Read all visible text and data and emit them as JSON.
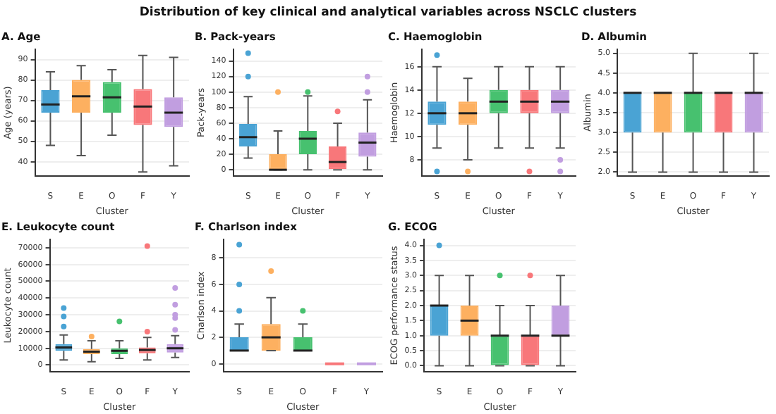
{
  "chart_data": [
    {
      "type": "other",
      "title": "Distribution of key clinical and analytical variables across NSCLC clusters"
    },
    {
      "type": "box",
      "title": "A. Age",
      "xlabel": "Cluster",
      "ylabel": "Age (years)",
      "categories": [
        "S",
        "E",
        "O",
        "F",
        "Y"
      ],
      "colors": [
        "#4aa3d4",
        "#fdb060",
        "#47c16f",
        "#f8777a",
        "#c19ee0"
      ],
      "grid": "y",
      "ylim": [
        33,
        95
      ],
      "yticks": [
        40,
        50,
        60,
        70,
        80,
        90
      ],
      "boxes": [
        {
          "low": 48,
          "q1": 64,
          "median": 68,
          "q3": 75,
          "high": 84
        },
        {
          "low": 43,
          "q1": 64,
          "median": 72,
          "q3": 80,
          "high": 87
        },
        {
          "low": 53,
          "q1": 64,
          "median": 71.5,
          "q3": 79,
          "high": 85
        },
        {
          "low": 35,
          "q1": 58,
          "median": 67,
          "q3": 75.5,
          "high": 92
        },
        {
          "low": 38,
          "q1": 57,
          "median": 64,
          "q3": 71.5,
          "high": 91
        }
      ]
    },
    {
      "type": "box",
      "title": "B. Pack-years",
      "xlabel": "Cluster",
      "ylabel": "Pack-years",
      "categories": [
        "S",
        "E",
        "O",
        "F",
        "Y"
      ],
      "colors": [
        "#4aa3d4",
        "#fdb060",
        "#47c16f",
        "#f8777a",
        "#c19ee0"
      ],
      "grid": "y",
      "ylim": [
        -8,
        155
      ],
      "yticks": [
        0,
        20,
        40,
        60,
        80,
        100,
        120,
        140
      ],
      "boxes": [
        {
          "low": 15,
          "q1": 30,
          "median": 42,
          "q3": 59,
          "high": 94,
          "outliers": [
            120,
            150
          ]
        },
        {
          "low": 0,
          "q1": 0,
          "median": 0,
          "q3": 20,
          "high": 50,
          "outliers": [
            100
          ]
        },
        {
          "low": 0,
          "q1": 20,
          "median": 40,
          "q3": 50,
          "high": 95,
          "outliers": [
            100
          ]
        },
        {
          "low": 0,
          "q1": 0,
          "median": 10,
          "q3": 30,
          "high": 60,
          "outliers": [
            75
          ]
        },
        {
          "low": 0,
          "q1": 17,
          "median": 35,
          "q3": 48,
          "high": 90,
          "outliers": [
            100,
            120
          ]
        }
      ]
    },
    {
      "type": "box",
      "title": "C. Haemoglobin",
      "xlabel": "Cluster",
      "ylabel": "Haemoglobin",
      "categories": [
        "S",
        "E",
        "O",
        "F",
        "Y"
      ],
      "colors": [
        "#4aa3d4",
        "#fdb060",
        "#47c16f",
        "#f8777a",
        "#c19ee0"
      ],
      "grid": "y",
      "ylim": [
        6.6,
        17.5
      ],
      "yticks": [
        8,
        10,
        12,
        14,
        16
      ],
      "boxes": [
        {
          "low": 9,
          "q1": 11,
          "median": 12,
          "q3": 13,
          "high": 16,
          "outliers": [
            7,
            17
          ]
        },
        {
          "low": 8,
          "q1": 11,
          "median": 12,
          "q3": 13,
          "high": 15,
          "outliers": [
            7
          ]
        },
        {
          "low": 9,
          "q1": 12,
          "median": 13,
          "q3": 14,
          "high": 16
        },
        {
          "low": 9,
          "q1": 12,
          "median": 13,
          "q3": 14,
          "high": 16,
          "outliers": [
            7
          ]
        },
        {
          "low": 9,
          "q1": 12,
          "median": 13,
          "q3": 14,
          "high": 16,
          "outliers": [
            7,
            8
          ]
        }
      ]
    },
    {
      "type": "box",
      "title": "D. Albumin",
      "xlabel": "Cluster",
      "ylabel": "Albumin",
      "categories": [
        "S",
        "E",
        "O",
        "F",
        "Y"
      ],
      "colors": [
        "#4aa3d4",
        "#fdb060",
        "#47c16f",
        "#f8777a",
        "#c19ee0"
      ],
      "grid": "y",
      "ylim": [
        1.9,
        5.1
      ],
      "yticks": [
        {
          "value": 2,
          "label": "2.0"
        },
        2.5,
        {
          "value": 3,
          "label": "3.0"
        },
        3.5,
        {
          "value": 4,
          "label": "4.0"
        },
        4.5,
        {
          "value": 5,
          "label": "5.0"
        }
      ],
      "boxes": [
        {
          "low": 2,
          "q1": 3,
          "median": 4,
          "q3": 4,
          "high": 4
        },
        {
          "low": 2,
          "q1": 3,
          "median": 4,
          "q3": 4,
          "high": 4
        },
        {
          "low": 2,
          "q1": 3,
          "median": 4,
          "q3": 4,
          "high": 5
        },
        {
          "low": 2,
          "q1": 3,
          "median": 4,
          "q3": 4,
          "high": 4
        },
        {
          "low": 2,
          "q1": 3,
          "median": 4,
          "q3": 4,
          "high": 5
        }
      ]
    },
    {
      "type": "box",
      "title": "E. Leukocyte count",
      "xlabel": "Cluster",
      "ylabel": "Leukocyte count",
      "categories": [
        "S",
        "E",
        "O",
        "F",
        "Y"
      ],
      "colors": [
        "#4aa3d4",
        "#fdb060",
        "#47c16f",
        "#f8777a",
        "#c19ee0"
      ],
      "grid": "y",
      "ylim": [
        -4000,
        75000
      ],
      "yticks": [
        0,
        10000,
        20000,
        30000,
        40000,
        50000,
        60000,
        70000
      ],
      "boxes": [
        {
          "low": 3000,
          "q1": 8500,
          "median": 10500,
          "q3": 12500,
          "high": 18000,
          "outliers": [
            23000,
            29000,
            34000
          ]
        },
        {
          "low": 2000,
          "q1": 6500,
          "median": 8000,
          "q3": 9500,
          "high": 14500,
          "outliers": [
            17000
          ]
        },
        {
          "low": 4000,
          "q1": 6500,
          "median": 8500,
          "q3": 10000,
          "high": 14500,
          "outliers": [
            26000
          ]
        },
        {
          "low": 3000,
          "q1": 7000,
          "median": 9000,
          "q3": 10500,
          "high": 16500,
          "outliers": [
            20000,
            71000
          ]
        },
        {
          "low": 4500,
          "q1": 7500,
          "median": 10000,
          "q3": 12500,
          "high": 17500,
          "outliers": [
            21000,
            28000,
            30000,
            36000,
            46000
          ]
        }
      ]
    },
    {
      "type": "box",
      "title": "F. Charlson index",
      "xlabel": "Cluster",
      "ylabel": "Charlson index",
      "categories": [
        "S",
        "E",
        "O",
        "F",
        "Y"
      ],
      "colors": [
        "#4aa3d4",
        "#fdb060",
        "#47c16f",
        "#f8777a",
        "#c19ee0"
      ],
      "grid": "y",
      "ylim": [
        -0.6,
        9.4
      ],
      "yticks": [
        0,
        2,
        4,
        6,
        8
      ],
      "boxes": [
        {
          "low": 1,
          "q1": 1,
          "median": 1,
          "q3": 2,
          "high": 3,
          "outliers": [
            4,
            6,
            9
          ]
        },
        {
          "low": 1,
          "q1": 1,
          "median": 2,
          "q3": 3,
          "high": 5,
          "outliers": [
            7
          ]
        },
        {
          "low": 1,
          "q1": 1,
          "median": 1,
          "q3": 2,
          "high": 3,
          "outliers": [
            4
          ]
        },
        {
          "low": 0,
          "q1": 0,
          "median": 0,
          "q3": 0,
          "high": 0
        },
        {
          "low": 0,
          "q1": 0,
          "median": 0,
          "q3": 0,
          "high": 0
        }
      ]
    },
    {
      "type": "box",
      "title": "G. ECOG",
      "xlabel": "Cluster",
      "ylabel": "ECOG performance status",
      "categories": [
        "S",
        "E",
        "O",
        "F",
        "Y"
      ],
      "colors": [
        "#4aa3d4",
        "#fdb060",
        "#47c16f",
        "#f8777a",
        "#c19ee0"
      ],
      "grid": "y",
      "ylim": [
        -0.2,
        4.2
      ],
      "yticks": [
        {
          "value": 0,
          "label": "0.0"
        },
        0.5,
        {
          "value": 1,
          "label": "1.0"
        },
        1.5,
        {
          "value": 2,
          "label": "2.0"
        },
        2.5,
        {
          "value": 3,
          "label": "3.0"
        },
        3.5,
        {
          "value": 4,
          "label": "4.0"
        }
      ],
      "boxes": [
        {
          "low": 0,
          "q1": 1,
          "median": 2,
          "q3": 2,
          "high": 3,
          "outliers": [
            4
          ]
        },
        {
          "low": 0,
          "q1": 1,
          "median": 1.5,
          "q3": 2,
          "high": 3
        },
        {
          "low": 0,
          "q1": 0,
          "median": 1,
          "q3": 1,
          "high": 2,
          "outliers": [
            3
          ]
        },
        {
          "low": 0,
          "q1": 0,
          "median": 1,
          "q3": 1,
          "high": 2,
          "outliers": [
            3
          ]
        },
        {
          "low": 0,
          "q1": 1,
          "median": 1,
          "q3": 2,
          "high": 3
        }
      ]
    }
  ]
}
